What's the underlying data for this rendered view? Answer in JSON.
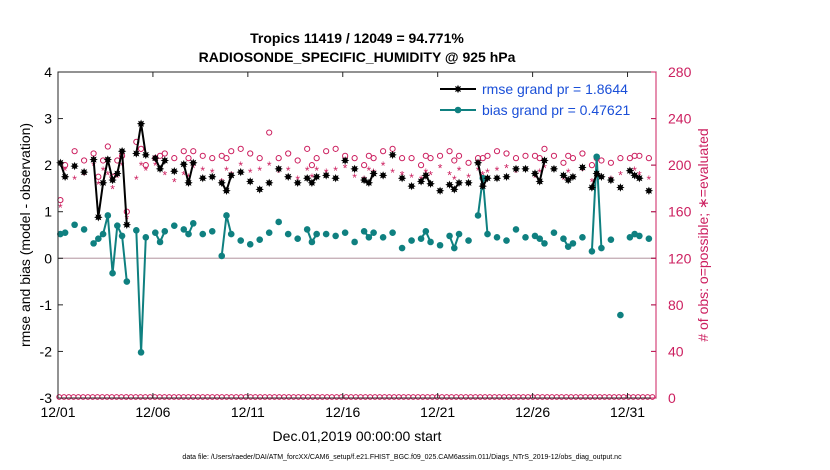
{
  "chart_data": {
    "type": "line",
    "title": "Tropics 11419 / 12049 = 94.771%",
    "subtitle": "RADIOSONDE_SPECIFIC_HUMIDITY @ 925 hPa",
    "xlabel": "Dec.01,2019 00:00:00 start",
    "ylabel": "rmse and bias (model - observation)",
    "y2label": "# of obs: o=possible; ∗=evaluated",
    "footnote": "data file: /Users/raeder/DAI/ATM_forcXX/CAM6_setup/f.e21.FHIST_BGC.f09_025.CAM6assim.011/Diags_NTrS_2019-12/obs_diag_output.nc",
    "xlim": [
      1,
      32.5
    ],
    "ylim": [
      -3,
      4
    ],
    "y2lim": [
      0,
      280
    ],
    "xticks": [
      1,
      6,
      11,
      16,
      21,
      26,
      31
    ],
    "xtick_labels": [
      "12/01",
      "12/06",
      "12/11",
      "12/16",
      "12/21",
      "12/26",
      "12/31"
    ],
    "yticks": [
      -3,
      -2,
      -1,
      0,
      1,
      2,
      3,
      4
    ],
    "ytick_labels": [
      "-3",
      "-2",
      "-1",
      "0",
      "1",
      "2",
      "3",
      "4"
    ],
    "y2ticks": [
      0,
      40,
      80,
      120,
      160,
      200,
      240,
      280
    ],
    "y2tick_labels": [
      "0",
      "40",
      "80",
      "120",
      "160",
      "200",
      "240",
      "280"
    ],
    "legend_position": "top-right",
    "colors": {
      "rmse": "#000000",
      "bias": "#0f8080",
      "obs": "#cc1f5f",
      "legend_text": "#1a4fd8",
      "zero_line": "#c0a8b0"
    },
    "series": [
      {
        "name": "rmse grand pr = 1.8644",
        "axis": "left",
        "x": [
          1.125,
          1.375,
          1.875,
          2.375,
          2.875,
          3.125,
          3.375,
          3.625,
          3.875,
          4.125,
          4.375,
          4.625,
          5.125,
          5.375,
          5.625,
          6.125,
          6.375,
          6.625,
          7.125,
          7.625,
          7.875,
          8.125,
          8.625,
          9.125,
          9.625,
          9.875,
          10.125,
          10.625,
          11.125,
          11.625,
          12.125,
          12.625,
          13.125,
          13.625,
          14.125,
          14.375,
          14.625,
          15.125,
          15.625,
          16.125,
          16.625,
          17.125,
          17.375,
          17.625,
          18.125,
          18.625,
          19.125,
          19.625,
          20.125,
          20.375,
          20.625,
          21.125,
          21.625,
          21.875,
          22.125,
          22.625,
          23.125,
          23.375,
          23.625,
          24.125,
          24.625,
          25.125,
          25.625,
          26.125,
          26.375,
          26.625,
          27.125,
          27.625,
          27.875,
          28.125,
          28.625,
          29.125,
          29.375,
          29.625,
          30.125,
          30.625,
          31.125,
          31.375,
          31.625,
          32.125
        ],
        "values": [
          2.05,
          1.75,
          1.98,
          1.85,
          2.12,
          0.88,
          1.62,
          2.12,
          1.68,
          1.82,
          2.3,
          0.72,
          2.25,
          2.89,
          2.22,
          2.15,
          1.92,
          2.1,
          1.87,
          2.02,
          1.62,
          2.05,
          1.72,
          1.75,
          1.62,
          1.45,
          1.78,
          1.85,
          1.65,
          1.48,
          1.62,
          1.92,
          1.75,
          1.62,
          1.72,
          1.62,
          1.75,
          1.78,
          1.72,
          2.1,
          1.92,
          1.68,
          1.62,
          1.82,
          1.78,
          2.22,
          1.72,
          1.55,
          1.65,
          1.78,
          1.6,
          1.45,
          1.58,
          1.48,
          1.62,
          1.62,
          2.05,
          1.55,
          1.72,
          1.72,
          1.75,
          1.92,
          1.92,
          1.82,
          1.65,
          2.1,
          1.92,
          1.78,
          1.68,
          1.75,
          1.95,
          1.52,
          1.82,
          1.75,
          1.68,
          1.52,
          1.88,
          1.78,
          1.72,
          1.45
        ]
      },
      {
        "name": "bias grand pr = 0.47621",
        "axis": "left",
        "x": [
          1.125,
          1.375,
          1.875,
          2.375,
          2.875,
          3.125,
          3.375,
          3.625,
          3.875,
          4.125,
          4.375,
          4.625,
          5.125,
          5.375,
          5.625,
          6.125,
          6.375,
          6.625,
          7.125,
          7.625,
          7.875,
          8.125,
          8.625,
          9.125,
          9.625,
          9.875,
          10.125,
          10.625,
          11.125,
          11.625,
          12.125,
          12.625,
          13.125,
          13.625,
          14.125,
          14.375,
          14.625,
          15.125,
          15.625,
          16.125,
          16.625,
          17.125,
          17.375,
          17.625,
          18.125,
          18.625,
          19.125,
          19.625,
          20.125,
          20.375,
          20.625,
          21.125,
          21.625,
          21.875,
          22.125,
          22.625,
          23.125,
          23.375,
          23.625,
          24.125,
          24.625,
          25.125,
          25.625,
          26.125,
          26.375,
          26.625,
          27.125,
          27.625,
          27.875,
          28.125,
          28.625,
          29.125,
          29.375,
          29.625,
          30.125,
          30.625,
          31.125,
          31.375,
          31.625,
          32.125
        ],
        "values": [
          0.52,
          0.55,
          0.72,
          0.62,
          0.32,
          0.42,
          0.52,
          0.92,
          -0.32,
          0.7,
          0.48,
          -0.5,
          0.6,
          -2.02,
          0.45,
          0.55,
          0.35,
          0.58,
          0.7,
          0.62,
          0.52,
          0.75,
          0.52,
          0.58,
          0.05,
          0.92,
          0.52,
          0.38,
          0.3,
          0.4,
          0.55,
          0.78,
          0.52,
          0.42,
          0.62,
          0.35,
          0.52,
          0.52,
          0.48,
          0.55,
          0.35,
          0.58,
          0.45,
          0.55,
          0.45,
          0.55,
          0.22,
          0.38,
          0.42,
          0.58,
          0.35,
          0.28,
          0.48,
          0.22,
          0.52,
          0.38,
          0.92,
          1.72,
          0.52,
          0.45,
          0.38,
          0.62,
          0.45,
          0.48,
          0.42,
          0.32,
          0.55,
          0.42,
          0.25,
          0.32,
          0.45,
          0.15,
          2.18,
          0.22,
          0.4,
          -1.22,
          0.45,
          0.52,
          0.48,
          0.42
        ]
      },
      {
        "name": "possible obs",
        "axis": "right",
        "marker": "o",
        "x": [
          1.125,
          1.375,
          1.875,
          2.375,
          2.875,
          3.125,
          3.375,
          3.625,
          3.875,
          4.125,
          4.375,
          4.625,
          5.125,
          5.375,
          5.625,
          6.125,
          6.375,
          6.625,
          7.125,
          7.625,
          7.875,
          8.125,
          8.625,
          9.125,
          9.625,
          9.875,
          10.125,
          10.625,
          11.125,
          11.625,
          12.125,
          12.625,
          13.125,
          13.625,
          14.125,
          14.375,
          14.625,
          15.125,
          15.625,
          16.125,
          16.625,
          17.125,
          17.375,
          17.625,
          18.125,
          18.625,
          19.125,
          19.625,
          20.125,
          20.375,
          20.625,
          21.125,
          21.625,
          21.875,
          22.125,
          22.625,
          23.125,
          23.375,
          23.625,
          24.125,
          24.625,
          25.125,
          25.625,
          26.125,
          26.375,
          26.625,
          27.125,
          27.625,
          27.875,
          28.125,
          28.625,
          29.125,
          29.375,
          29.625,
          30.125,
          30.625,
          31.125,
          31.375,
          31.625,
          32.125
        ],
        "values": [
          170,
          200,
          212,
          204,
          210,
          190,
          204,
          216,
          190,
          204,
          208,
          160,
          220,
          214,
          200,
          206,
          208,
          210,
          206,
          212,
          206,
          212,
          208,
          206,
          208,
          206,
          212,
          214,
          210,
          206,
          228,
          206,
          210,
          204,
          214,
          200,
          206,
          212,
          214,
          208,
          206,
          200,
          208,
          206,
          212,
          214,
          206,
          206,
          200,
          208,
          206,
          208,
          212,
          204,
          208,
          202,
          206,
          206,
          208,
          212,
          210,
          206,
          208,
          208,
          206,
          214,
          208,
          202,
          208,
          206,
          210,
          200,
          206,
          204,
          202,
          206,
          206,
          208,
          208,
          206
        ],
        "counts_at_zero": true
      },
      {
        "name": "evaluated obs",
        "axis": "right",
        "marker": "*",
        "x": [
          1.125,
          1.375,
          1.875,
          2.375,
          2.875,
          3.125,
          3.375,
          3.625,
          3.875,
          4.125,
          4.375,
          4.625,
          5.125,
          5.375,
          5.625,
          6.125,
          6.375,
          6.625,
          7.125,
          7.625,
          7.875,
          8.125,
          8.625,
          9.125,
          9.625,
          9.875,
          10.125,
          10.625,
          11.125,
          11.625,
          12.125,
          12.625,
          13.125,
          13.625,
          14.125,
          14.375,
          14.625,
          15.125,
          15.625,
          16.125,
          16.625,
          17.125,
          17.375,
          17.625,
          18.125,
          18.625,
          19.125,
          19.625,
          20.125,
          20.375,
          20.625,
          21.125,
          21.625,
          21.875,
          22.125,
          22.625,
          23.125,
          23.375,
          23.625,
          24.125,
          24.625,
          25.125,
          25.625,
          26.125,
          26.375,
          26.625,
          27.125,
          27.625,
          27.875,
          28.125,
          28.625,
          29.125,
          29.375,
          29.625,
          30.125,
          30.625,
          31.125,
          31.375,
          31.625,
          32.125
        ],
        "values": [
          164,
          196,
          188,
          192,
          200,
          184,
          196,
          192,
          180,
          190,
          200,
          154,
          188,
          200,
          196,
          200,
          196,
          192,
          186,
          192,
          190,
          198,
          196,
          194,
          186,
          196,
          192,
          200,
          194,
          196,
          200,
          194,
          196,
          188,
          196,
          190,
          196,
          194,
          196,
          198,
          190,
          188,
          196,
          194,
          200,
          194,
          192,
          190,
          188,
          194,
          192,
          198,
          192,
          188,
          196,
          190,
          196,
          192,
          194,
          196,
          198,
          194,
          196,
          190,
          194,
          198,
          196,
          188,
          194,
          190,
          196,
          186,
          192,
          190,
          188,
          192,
          194,
          196,
          192,
          188
        ]
      }
    ]
  }
}
